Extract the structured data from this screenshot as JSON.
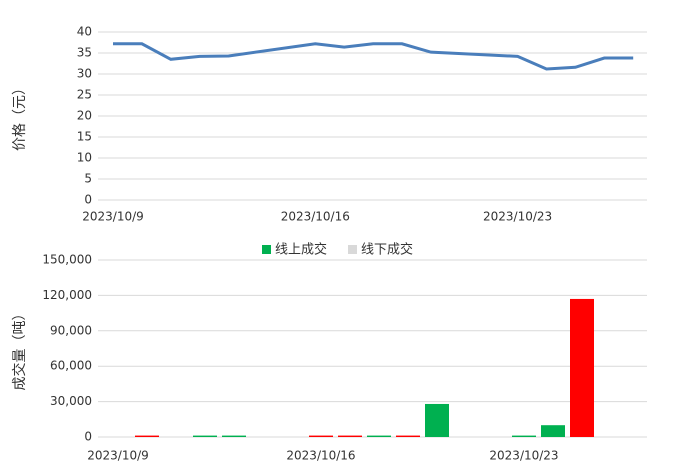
{
  "chart_data": [
    {
      "type": "line",
      "ylabel": "价格（元）",
      "x": [
        "2023/10/9",
        "2023/10/10",
        "2023/10/11",
        "2023/10/12",
        "2023/10/13",
        "2023/10/16",
        "2023/10/17",
        "2023/10/18",
        "2023/10/19",
        "2023/10/20",
        "2023/10/23",
        "2023/10/24",
        "2023/10/25",
        "2023/10/26",
        "2023/10/27"
      ],
      "values": [
        37.2,
        37.2,
        33.5,
        34.2,
        34.3,
        37.2,
        36.4,
        37.2,
        37.2,
        35.2,
        34.2,
        31.2,
        31.6,
        33.8,
        33.8
      ],
      "color": "#4a7ebb",
      "xticks": [
        "2023/10/9",
        "2023/10/16",
        "2023/10/23"
      ],
      "ylim": [
        0,
        40
      ],
      "yticks": [
        0,
        5,
        10,
        15,
        20,
        25,
        30,
        35,
        40
      ],
      "grid": true
    },
    {
      "type": "bar",
      "ylabel": "成交量（吨）",
      "x": [
        "2023/10/9",
        "2023/10/10",
        "2023/10/11",
        "2023/10/12",
        "2023/10/13",
        "2023/10/16",
        "2023/10/17",
        "2023/10/18",
        "2023/10/19",
        "2023/10/20",
        "2023/10/23",
        "2023/10/24",
        "2023/10/25",
        "2023/10/26",
        "2023/10/27"
      ],
      "series": [
        {
          "name": "线上成交",
          "color": "#00b050",
          "colors": [
            "#00b050",
            "#ff0000",
            "#00b050",
            "#00b050",
            "#00b050",
            "#ff0000",
            "#ff0000",
            "#00b050",
            "#ff0000",
            "#00b050",
            "#00b050",
            "#00b050",
            "#ff0000",
            "#00b050",
            "#00b050"
          ],
          "values": [
            null,
            1200,
            null,
            1200,
            1200,
            1200,
            1200,
            1200,
            1200,
            28000,
            1200,
            10000,
            117000,
            null,
            null
          ]
        },
        {
          "name": "线下成交",
          "color": "#d9d9d9",
          "values": [
            null,
            null,
            null,
            null,
            null,
            null,
            null,
            null,
            null,
            null,
            null,
            null,
            null,
            null,
            null
          ]
        }
      ],
      "xticks": [
        "2023/10/9",
        "2023/10/16",
        "2023/10/23"
      ],
      "ylim": [
        0,
        150000
      ],
      "yticks": [
        0,
        {
          "value": 30000,
          "label": "30,000"
        },
        {
          "value": 60000,
          "label": "60,000"
        },
        {
          "value": 90000,
          "label": "90,000"
        },
        {
          "value": 120000,
          "label": "120,000"
        },
        {
          "value": 150000,
          "label": "150,000"
        }
      ],
      "grid": true,
      "legend": "top"
    }
  ]
}
